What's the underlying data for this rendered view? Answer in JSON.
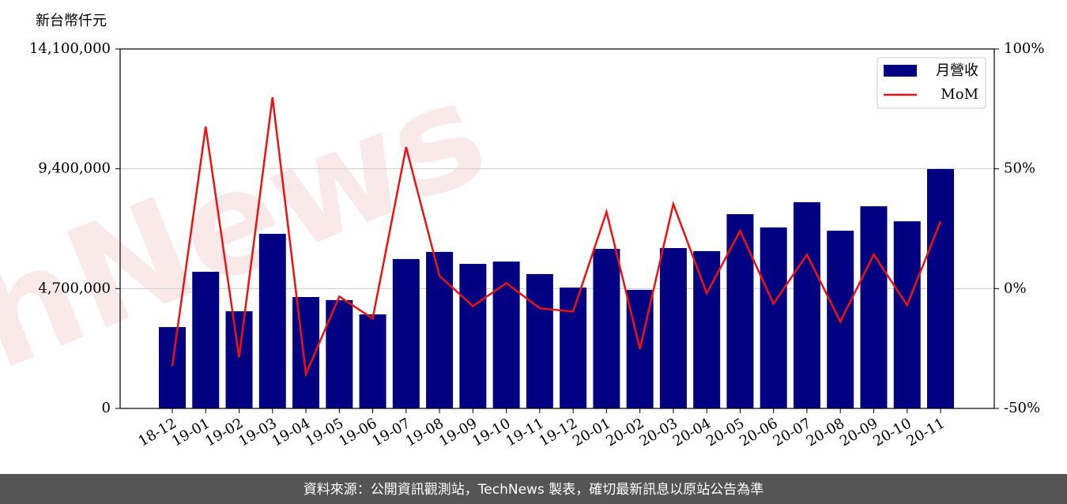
{
  "chart_data": {
    "type": "bar-line",
    "y_label": "新台幣仟元",
    "categories": [
      "18-12",
      "19-01",
      "19-02",
      "19-03",
      "19-04",
      "19-05",
      "19-06",
      "19-07",
      "19-08",
      "19-09",
      "19-10",
      "19-11",
      "19-12",
      "20-01",
      "20-02",
      "20-03",
      "20-04",
      "20-05",
      "20-06",
      "20-07",
      "20-08",
      "20-09",
      "20-10",
      "20-11"
    ],
    "series": [
      {
        "name": "月營收",
        "color": "#000080",
        "values": [
          3190000,
          5360000,
          3810000,
          6850000,
          4370000,
          4250000,
          3690000,
          5860000,
          6140000,
          5670000,
          5760000,
          5270000,
          4740000,
          6260000,
          4650000,
          6290000,
          6170000,
          7620000,
          7100000,
          8090000,
          6970000,
          7930000,
          7340000,
          9390000
        ]
      },
      {
        "name": "MoM",
        "color": "#ee1111",
        "axis": "y2",
        "values": [
          -32.3,
          67.6,
          -28.7,
          79.8,
          -35.6,
          -3.3,
          -12.5,
          59.0,
          5.3,
          -7.3,
          2.3,
          -8.2,
          -9.6,
          32.0,
          -25.1,
          35.3,
          -2.0,
          24.1,
          -6.3,
          14.2,
          -13.8,
          14.2,
          -6.9,
          28.0
        ]
      }
    ],
    "ylim": [
      0,
      14100000
    ],
    "yticks": [
      0,
      {
        "value": 4700000,
        "label": "4,700,000"
      },
      {
        "value": 9400000,
        "label": "9,400,000"
      },
      {
        "value": 14100000,
        "label": "14,100,000"
      }
    ],
    "y2lim": [
      -50,
      100
    ],
    "y2ticks": [
      {
        "value": -50,
        "label": "-50%"
      },
      {
        "value": 0,
        "label": "0%"
      },
      {
        "value": 50,
        "label": "50%"
      },
      {
        "value": 100,
        "label": "100%"
      }
    ],
    "grid": true,
    "legend": "upper right",
    "watermark": "TechNews",
    "footer": "資料來源：公開資訊觀測站，TechNews 製表，確切最新訊息以原站公告為準"
  }
}
